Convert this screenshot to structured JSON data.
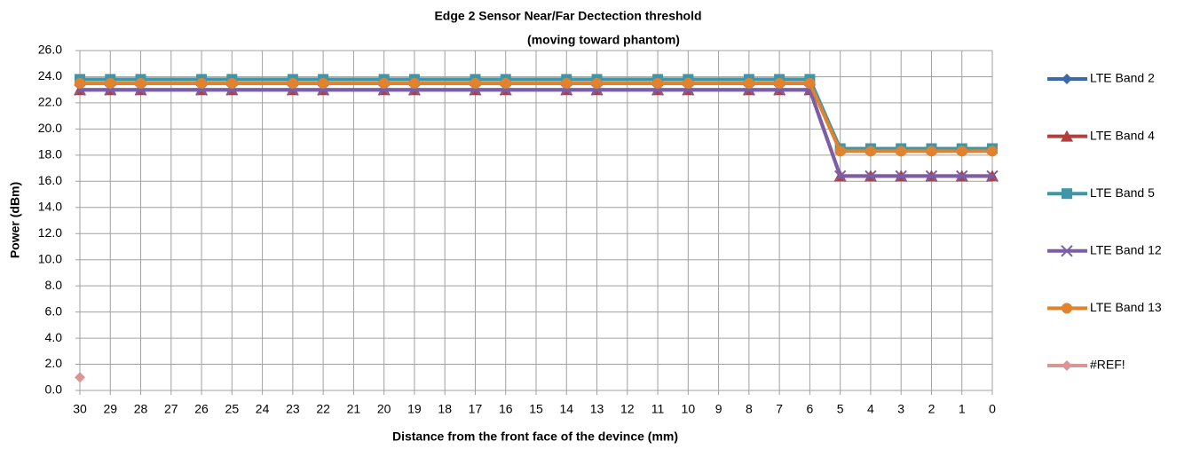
{
  "chart_data": {
    "type": "line",
    "title": "Edge 2 Sensor Near/Far Dectection threshold",
    "subtitle": "(moving toward phantom)",
    "xlabel": "Distance from the front face of the devince (mm)",
    "ylabel": "Power (dBm)",
    "x": [
      30,
      29,
      28,
      26,
      25,
      23,
      22,
      20,
      19,
      17,
      16,
      14,
      13,
      11,
      10,
      8,
      7,
      6,
      5,
      4,
      3,
      2,
      1,
      0
    ],
    "xlim": [
      30,
      0
    ],
    "xticks": [
      30,
      29,
      28,
      27,
      26,
      25,
      24,
      23,
      22,
      21,
      20,
      19,
      18,
      17,
      16,
      15,
      14,
      13,
      12,
      11,
      10,
      9,
      8,
      7,
      6,
      5,
      4,
      3,
      2,
      1,
      0
    ],
    "ylim": [
      0,
      26
    ],
    "yticks": [
      {
        "value": 0,
        "label": "0.0"
      },
      {
        "value": 2,
        "label": "2.0"
      },
      {
        "value": 4,
        "label": "4.0"
      },
      {
        "value": 6,
        "label": "6.0"
      },
      {
        "value": 8,
        "label": "8.0"
      },
      {
        "value": 10,
        "label": "10.0"
      },
      {
        "value": 12,
        "label": "12.0"
      },
      {
        "value": 14,
        "label": "14.0"
      },
      {
        "value": 16,
        "label": "16.0"
      },
      {
        "value": 18,
        "label": "18.0"
      },
      {
        "value": 20,
        "label": "20.0"
      },
      {
        "value": 22,
        "label": "22.0"
      },
      {
        "value": 24,
        "label": "24.0"
      },
      {
        "value": 26,
        "label": "26.0"
      }
    ],
    "grid": true,
    "legend": "right",
    "series": [
      {
        "name": "LTE Band 2",
        "color": "#3a6aa8",
        "marker": "diamond",
        "values": [
          23.5,
          23.5,
          23.5,
          23.5,
          23.5,
          23.5,
          23.5,
          23.5,
          23.5,
          23.5,
          23.5,
          23.5,
          23.5,
          23.5,
          23.5,
          23.5,
          23.5,
          23.5,
          18.4,
          18.4,
          18.4,
          18.4,
          18.4,
          18.4
        ]
      },
      {
        "name": "LTE Band 4",
        "color": "#b0403c",
        "marker": "triangle",
        "values": [
          23.0,
          23.0,
          23.0,
          23.0,
          23.0,
          23.0,
          23.0,
          23.0,
          23.0,
          23.0,
          23.0,
          23.0,
          23.0,
          23.0,
          23.0,
          23.0,
          23.0,
          23.0,
          16.4,
          16.4,
          16.4,
          16.4,
          16.4,
          16.4
        ]
      },
      {
        "name": "LTE Band 5",
        "color": "#3d97a8",
        "marker": "square",
        "values": [
          23.8,
          23.8,
          23.8,
          23.8,
          23.8,
          23.8,
          23.8,
          23.8,
          23.8,
          23.8,
          23.8,
          23.8,
          23.8,
          23.8,
          23.8,
          23.8,
          23.8,
          23.8,
          18.5,
          18.5,
          18.5,
          18.5,
          18.5,
          18.5
        ]
      },
      {
        "name": "LTE Band 12",
        "color": "#7a5ea8",
        "marker": "x",
        "values": [
          23.0,
          23.0,
          23.0,
          23.0,
          23.0,
          23.0,
          23.0,
          23.0,
          23.0,
          23.0,
          23.0,
          23.0,
          23.0,
          23.0,
          23.0,
          23.0,
          23.0,
          23.0,
          16.4,
          16.4,
          16.4,
          16.4,
          16.4,
          16.4
        ]
      },
      {
        "name": "LTE Band 13",
        "color": "#e0822e",
        "marker": "circle",
        "values": [
          23.5,
          23.5,
          23.5,
          23.5,
          23.5,
          23.5,
          23.5,
          23.5,
          23.5,
          23.5,
          23.5,
          23.5,
          23.5,
          23.5,
          23.5,
          23.5,
          23.5,
          23.5,
          18.3,
          18.3,
          18.3,
          18.3,
          18.3,
          18.3
        ]
      },
      {
        "name": "#REF!",
        "color": "#d99694",
        "marker": "diamond",
        "values": [
          1.0,
          null,
          null,
          null,
          null,
          null,
          null,
          null,
          null,
          null,
          null,
          null,
          null,
          null,
          null,
          null,
          null,
          null,
          null,
          null,
          null,
          null,
          null,
          null
        ]
      }
    ]
  }
}
